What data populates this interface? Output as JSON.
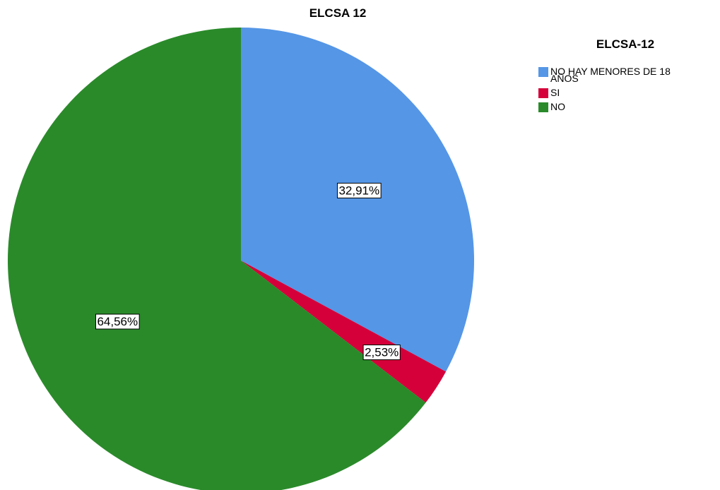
{
  "chart_data": {
    "type": "pie",
    "title": "ELCSA 12",
    "legend_title": "ELCSA-12",
    "legend_position": "top-right",
    "categories": [
      "NO HAY MENORES DE 18 AÑOS",
      "SI",
      "NO"
    ],
    "legend_lines": [
      [
        "NO HAY MENORES DE 18",
        "AÑOS"
      ],
      [
        "SI"
      ],
      [
        "NO"
      ]
    ],
    "values": [
      32.91,
      2.53,
      64.56
    ],
    "labels": [
      "32,91%",
      "2,53%",
      "64,56%"
    ],
    "colors": [
      "#5596e6",
      "#d5003a",
      "#2a8a2a"
    ],
    "start_angle": "12 o'clock",
    "direction": "clockwise"
  }
}
